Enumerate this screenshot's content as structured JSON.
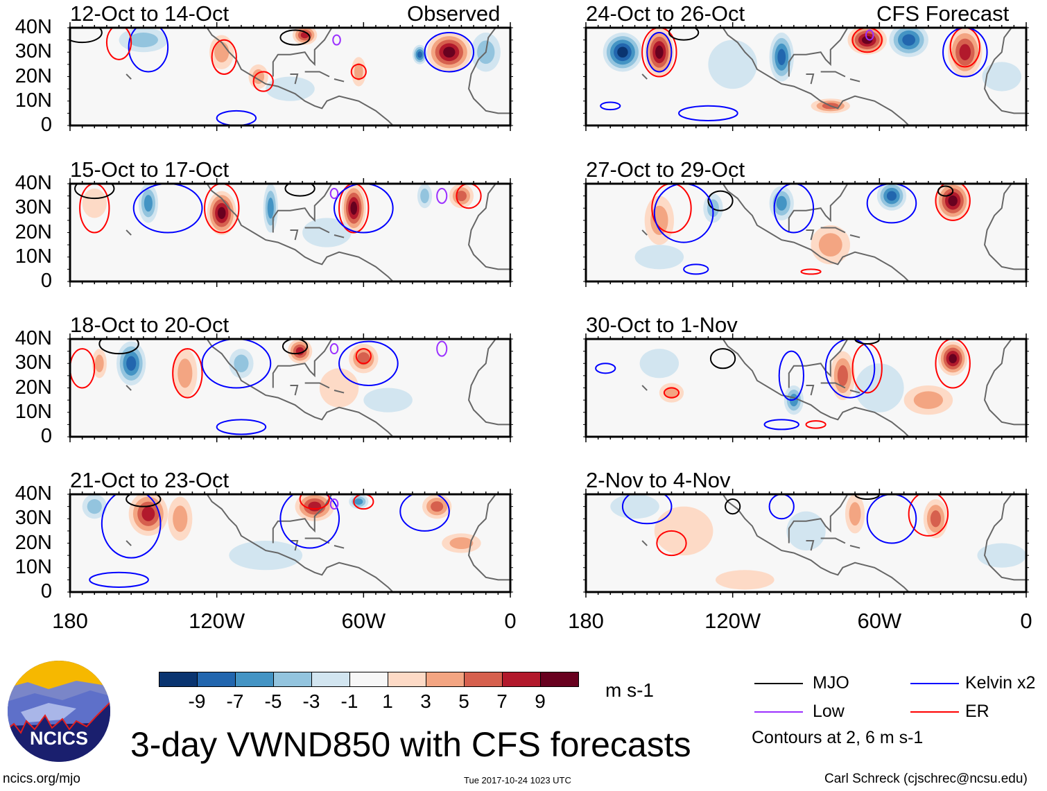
{
  "title": "3-day VWND850 with CFS forecasts",
  "observed_label": "Observed",
  "forecast_label": "CFS Forecast",
  "lat_ticks": [
    "40N",
    "30N",
    "20N",
    "10N",
    "0"
  ],
  "lon_ticks": [
    "180",
    "120W",
    "60W",
    "0"
  ],
  "units": "m s-1",
  "colorbar": {
    "labels": [
      "-9",
      "-7",
      "-5",
      "-3",
      "-1",
      "1",
      "3",
      "5",
      "7",
      "9"
    ],
    "colors": [
      "#0a3470",
      "#2266ae",
      "#4494c4",
      "#93c4de",
      "#d2e5f0",
      "#f7f7f7",
      "#fddac6",
      "#f3a582",
      "#d6604e",
      "#b2192c",
      "#68011f"
    ]
  },
  "legend": {
    "mjo": "MJO",
    "low": "Low",
    "kelvin": "Kelvin x2",
    "er": "ER",
    "note": "Contours at 2, 6 m s-1",
    "colors": {
      "mjo": "#000000",
      "low": "#9b30ff",
      "kelvin": "#0000ff",
      "er": "#ff0000"
    }
  },
  "logo_text": "NCICS",
  "footer": {
    "url": "ncics.org/mjo",
    "timestamp": "Tue 2017-10-24 1023 UTC",
    "credit": "Carl Schreck (cjschrec@ncsu.edu)"
  },
  "panels": [
    {
      "period": "12-Oct to 14-Oct",
      "anoms": [
        [
          -25,
          30,
          9,
          8,
          10
        ],
        [
          -37,
          29,
          3,
          4,
          -9
        ],
        [
          -118,
          30,
          5,
          7,
          5
        ],
        [
          -103,
          20,
          4,
          5,
          5
        ],
        [
          -84,
          37,
          5,
          4,
          8
        ],
        [
          -62,
          22,
          3,
          6,
          5
        ],
        [
          -150,
          35,
          10,
          5,
          -4
        ],
        [
          -10,
          30,
          6,
          8,
          -4
        ],
        [
          -90,
          15,
          10,
          5,
          -2
        ]
      ],
      "contours": [
        [
          "mjo",
          -88,
          36,
          6,
          3
        ],
        [
          "er",
          -117,
          28,
          5,
          7
        ],
        [
          "er",
          -101,
          18,
          4,
          4
        ],
        [
          "er",
          -62,
          22,
          3,
          3
        ],
        [
          "kelvin",
          -25,
          30,
          10,
          8
        ],
        [
          "low",
          -71,
          35,
          1.5,
          2
        ],
        [
          "kelvin",
          -148,
          32,
          8,
          10
        ],
        [
          "er",
          -160,
          34,
          5,
          7
        ],
        [
          "kelvin",
          -112,
          3,
          8,
          3
        ],
        [
          "mjo",
          -175,
          38,
          8,
          4
        ]
      ]
    },
    {
      "period": "15-Oct to 17-Oct",
      "anoms": [
        [
          -118,
          28,
          6,
          9,
          10
        ],
        [
          -64,
          30,
          5,
          10,
          10
        ],
        [
          -148,
          32,
          4,
          8,
          -6
        ],
        [
          -98,
          30,
          3,
          10,
          -6
        ],
        [
          -20,
          35,
          5,
          5,
          7
        ],
        [
          -35,
          35,
          3,
          5,
          -5
        ],
        [
          -170,
          32,
          5,
          6,
          3
        ],
        [
          -75,
          20,
          10,
          6,
          -2
        ]
      ],
      "contours": [
        [
          "er",
          -118,
          30,
          7,
          10
        ],
        [
          "er",
          -170,
          30,
          6,
          10
        ],
        [
          "er",
          -64,
          30,
          6,
          10
        ],
        [
          "kelvin",
          -60,
          30,
          12,
          10
        ],
        [
          "kelvin",
          -140,
          30,
          14,
          10
        ],
        [
          "mjo",
          -170,
          38,
          8,
          4
        ],
        [
          "mjo",
          -86,
          38,
          6,
          3
        ],
        [
          "low",
          -28,
          35,
          2,
          3
        ],
        [
          "low",
          -72,
          36,
          1.5,
          2
        ],
        [
          "er",
          -17,
          35,
          5,
          5
        ]
      ]
    },
    {
      "period": "18-Oct to 20-Oct",
      "anoms": [
        [
          -155,
          30,
          6,
          9,
          -8
        ],
        [
          -168,
          30,
          3,
          6,
          4
        ],
        [
          -133,
          26,
          5,
          10,
          5
        ],
        [
          -86,
          35,
          5,
          5,
          8
        ],
        [
          -60,
          32,
          6,
          6,
          7
        ],
        [
          -70,
          20,
          8,
          8,
          3
        ],
        [
          -110,
          30,
          5,
          6,
          -4
        ],
        [
          -50,
          15,
          10,
          5,
          -2
        ]
      ],
      "contours": [
        [
          "er",
          -132,
          26,
          6,
          10
        ],
        [
          "kelvin",
          -112,
          30,
          14,
          10
        ],
        [
          "kelvin",
          -58,
          30,
          12,
          9
        ],
        [
          "er",
          -60,
          33,
          3,
          3
        ],
        [
          "mjo",
          -160,
          38,
          8,
          4
        ],
        [
          "mjo",
          -88,
          37,
          5,
          3
        ],
        [
          "low",
          -28,
          36,
          2,
          3
        ],
        [
          "low",
          -72,
          36,
          1.5,
          2
        ],
        [
          "kelvin",
          -110,
          4,
          10,
          3
        ],
        [
          "er",
          -175,
          28,
          5,
          8
        ]
      ]
    },
    {
      "period": "21-Oct to 23-Oct",
      "anoms": [
        [
          -148,
          32,
          8,
          9,
          9
        ],
        [
          -135,
          30,
          5,
          9,
          5
        ],
        [
          -80,
          35,
          8,
          6,
          9
        ],
        [
          -30,
          35,
          6,
          5,
          7
        ],
        [
          -62,
          37,
          4,
          3,
          -6
        ],
        [
          -170,
          35,
          5,
          5,
          -4
        ],
        [
          -20,
          20,
          8,
          4,
          4
        ],
        [
          -100,
          15,
          15,
          6,
          -2
        ]
      ],
      "contours": [
        [
          "kelvin",
          -155,
          28,
          12,
          14
        ],
        [
          "kelvin",
          -82,
          30,
          12,
          12
        ],
        [
          "kelvin",
          -35,
          33,
          10,
          8
        ],
        [
          "er",
          -60,
          37,
          4,
          3
        ],
        [
          "er",
          -80,
          38,
          6,
          4
        ],
        [
          "mjo",
          -150,
          38,
          7,
          3
        ],
        [
          "low",
          -72,
          36,
          1.5,
          2
        ],
        [
          "kelvin",
          -160,
          5,
          12,
          3
        ]
      ]
    },
    {
      "period": "24-Oct to 26-Oct",
      "anoms": [
        [
          -165,
          30,
          8,
          8,
          -10
        ],
        [
          -150,
          30,
          6,
          10,
          10
        ],
        [
          -100,
          28,
          5,
          10,
          -9
        ],
        [
          -65,
          35,
          8,
          6,
          10
        ],
        [
          -48,
          35,
          8,
          7,
          -9
        ],
        [
          -25,
          30,
          7,
          10,
          9
        ],
        [
          -120,
          25,
          10,
          10,
          -3
        ],
        [
          -80,
          8,
          8,
          3,
          6
        ],
        [
          -10,
          20,
          8,
          6,
          -3
        ]
      ],
      "contours": [
        [
          "er",
          -150,
          30,
          7,
          10
        ],
        [
          "kelvin",
          -150,
          30,
          5,
          8
        ],
        [
          "er",
          -65,
          35,
          6,
          5
        ],
        [
          "low",
          -64,
          37,
          1.5,
          2
        ],
        [
          "er",
          -25,
          32,
          6,
          8
        ],
        [
          "kelvin",
          -25,
          30,
          9,
          10
        ],
        [
          "mjo",
          -140,
          38,
          6,
          3
        ],
        [
          "kelvin",
          -130,
          5,
          12,
          3
        ],
        [
          "kelvin",
          -170,
          8,
          4,
          1.5
        ]
      ]
    },
    {
      "period": "27-Oct to 29-Oct",
      "anoms": [
        [
          -150,
          25,
          6,
          10,
          4
        ],
        [
          -100,
          32,
          5,
          7,
          -7
        ],
        [
          -55,
          35,
          6,
          6,
          -9
        ],
        [
          -30,
          33,
          7,
          8,
          10
        ],
        [
          -128,
          30,
          4,
          6,
          -4
        ],
        [
          -80,
          15,
          8,
          8,
          4
        ],
        [
          -150,
          10,
          10,
          5,
          -2
        ]
      ],
      "contours": [
        [
          "mjo",
          -125,
          33,
          5,
          4
        ],
        [
          "er",
          -145,
          30,
          8,
          10
        ],
        [
          "kelvin",
          -140,
          28,
          12,
          12
        ],
        [
          "er",
          -30,
          33,
          7,
          8
        ],
        [
          "kelvin",
          -55,
          32,
          10,
          8
        ],
        [
          "mjo",
          -33,
          37,
          3,
          2
        ],
        [
          "kelvin",
          -95,
          30,
          8,
          10
        ],
        [
          "kelvin",
          -135,
          5,
          5,
          2
        ],
        [
          "er",
          -88,
          4,
          4,
          1
        ]
      ]
    },
    {
      "period": "30-Oct to 1-Nov",
      "anoms": [
        [
          -30,
          32,
          6,
          7,
          10
        ],
        [
          -75,
          25,
          5,
          10,
          6
        ],
        [
          -95,
          15,
          4,
          6,
          -6
        ],
        [
          -150,
          30,
          8,
          6,
          -3
        ],
        [
          -40,
          15,
          10,
          6,
          4
        ],
        [
          -145,
          18,
          5,
          4,
          4
        ],
        [
          -60,
          20,
          10,
          10,
          -3
        ]
      ],
      "contours": [
        [
          "er",
          -30,
          30,
          7,
          10
        ],
        [
          "er",
          -65,
          28,
          6,
          10
        ],
        [
          "kelvin",
          -72,
          28,
          10,
          12
        ],
        [
          "kelvin",
          -96,
          25,
          5,
          10
        ],
        [
          "mjo",
          -124,
          32,
          5,
          4
        ],
        [
          "mjo",
          -65,
          40,
          5,
          2
        ],
        [
          "er",
          -145,
          18,
          3,
          2
        ],
        [
          "kelvin",
          -100,
          5,
          7,
          2
        ],
        [
          "er",
          -86,
          5,
          4,
          1.5
        ],
        [
          "kelvin",
          -172,
          28,
          4,
          2
        ]
      ]
    },
    {
      "period": "2-Nov to 4-Nov",
      "anoms": [
        [
          -140,
          25,
          12,
          10,
          3
        ],
        [
          -37,
          30,
          5,
          8,
          6
        ],
        [
          -70,
          32,
          4,
          8,
          4
        ],
        [
          -90,
          25,
          8,
          8,
          -3
        ],
        [
          -115,
          5,
          12,
          4,
          3
        ],
        [
          -160,
          35,
          10,
          5,
          -2
        ],
        [
          -10,
          15,
          10,
          5,
          -2
        ]
      ],
      "contours": [
        [
          "er",
          -145,
          20,
          6,
          5
        ],
        [
          "kelvin",
          -155,
          35,
          10,
          7
        ],
        [
          "er",
          -40,
          32,
          8,
          9
        ],
        [
          "kelvin",
          -55,
          30,
          10,
          10
        ],
        [
          "mjo",
          -120,
          35,
          3,
          3
        ],
        [
          "mjo",
          -65,
          40,
          5,
          2
        ],
        [
          "kelvin",
          -100,
          35,
          5,
          5
        ]
      ]
    }
  ]
}
